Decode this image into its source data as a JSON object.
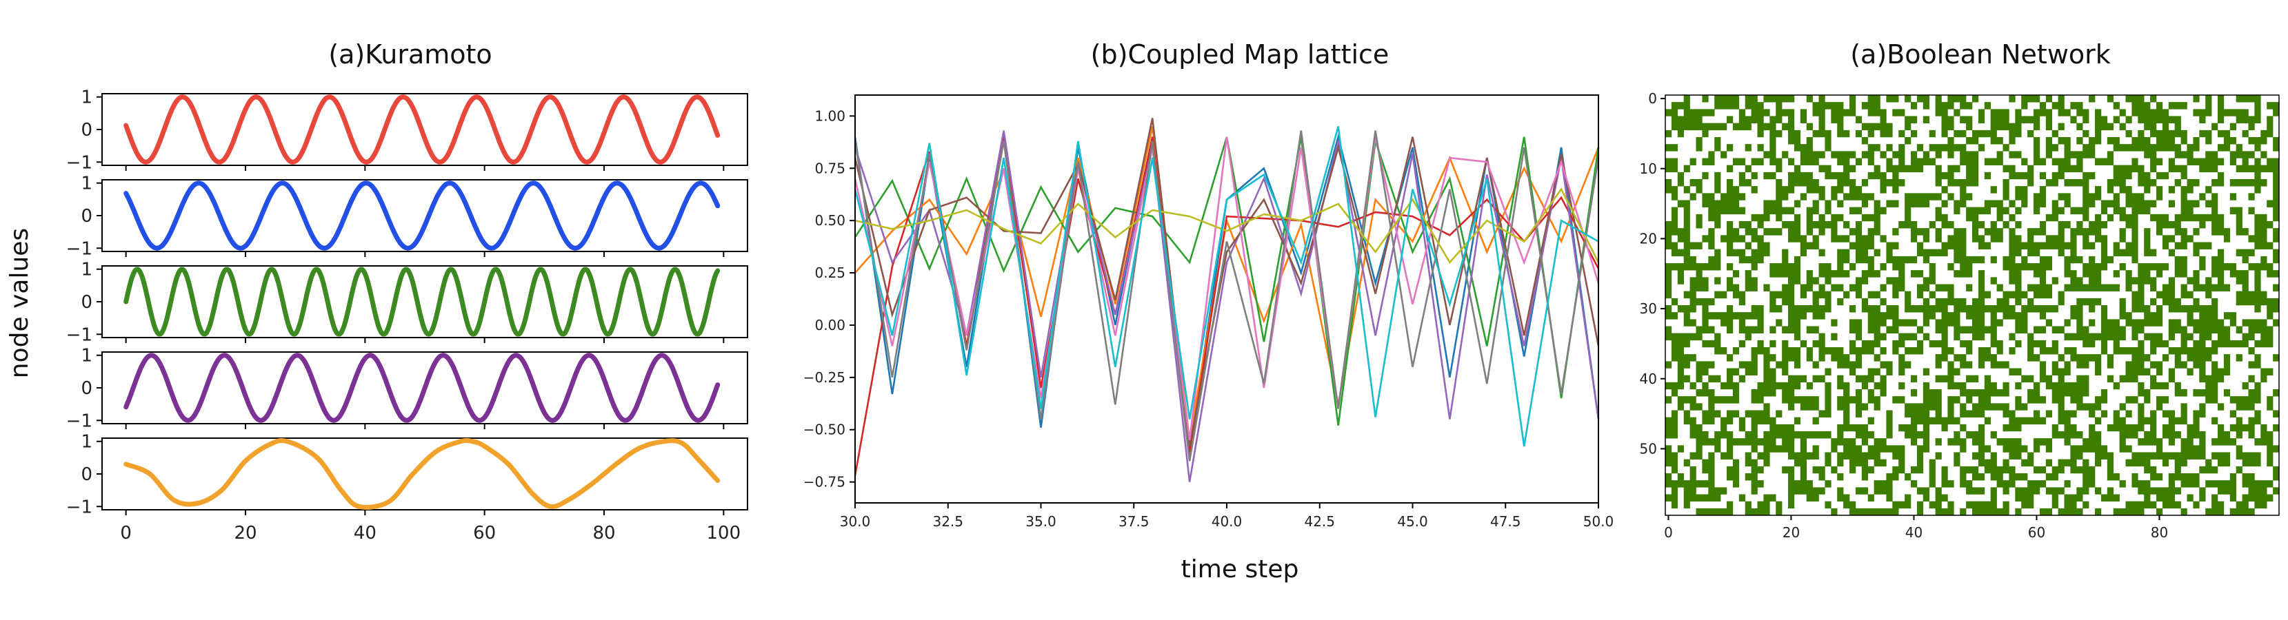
{
  "figure": {
    "shared_ylabel": "node values",
    "shared_xlabel": "time step"
  },
  "chart_data": [
    {
      "type": "line",
      "title": "(a)Kuramoto",
      "xlim": [
        -4,
        104
      ],
      "ylim": [
        -1.1,
        1.1
      ],
      "xticks": [
        0,
        20,
        40,
        60,
        80,
        100
      ],
      "yticks": [
        -1,
        0,
        1
      ],
      "series": [
        {
          "color": "#e8473b",
          "x_start": 0,
          "x_end": 99,
          "period": 12.3,
          "phase_offset": 0.52
        },
        {
          "color": "#2250e6",
          "x_start": 0,
          "x_end": 99,
          "period": 14.0,
          "phase_offset": 0.62
        },
        {
          "color": "#3d8a22",
          "x_start": 0,
          "x_end": 99,
          "period": 7.5,
          "phase_offset": 0.0
        },
        {
          "color": "#7b3294",
          "x_start": 0,
          "x_end": 99,
          "period": 12.2,
          "phase_offset": 0.1
        },
        {
          "color": "#f0a22b",
          "x_start": 0,
          "x_end": 99,
          "x": [
            0,
            4,
            8,
            12,
            16,
            20,
            24,
            27,
            32,
            36,
            39,
            44,
            48,
            52,
            56,
            58,
            60,
            64,
            68,
            71,
            74,
            78,
            82,
            86,
            90,
            93,
            96,
            99
          ],
          "y": [
            0.3,
            0.0,
            -0.8,
            -0.9,
            -0.5,
            0.4,
            0.9,
            1.0,
            0.5,
            -0.5,
            -1.0,
            -0.85,
            0.0,
            0.7,
            1.0,
            1.0,
            0.85,
            0.3,
            -0.6,
            -1.0,
            -0.8,
            -0.3,
            0.3,
            0.8,
            1.0,
            0.95,
            0.4,
            -0.2
          ]
        }
      ]
    },
    {
      "type": "line",
      "title": "(b)Coupled Map lattice",
      "xlim": [
        30,
        50
      ],
      "ylim": [
        -0.85,
        1.1
      ],
      "xticks": [
        30.0,
        32.5,
        35.0,
        37.5,
        40.0,
        42.5,
        45.0,
        47.5,
        50.0
      ],
      "xtick_labels": [
        "30.0",
        "32.5",
        "35.0",
        "37.5",
        "40.0",
        "42.5",
        "45.0",
        "47.5",
        "50.0"
      ],
      "yticks": [
        -0.75,
        -0.5,
        -0.25,
        0.0,
        0.25,
        0.5,
        0.75,
        1.0
      ],
      "ytick_labels": [
        "−0.75",
        "−0.50",
        "−0.25",
        "0.00",
        "0.25",
        "0.50",
        "0.75",
        "1.00"
      ],
      "x": [
        30,
        31,
        32,
        33,
        34,
        35,
        36,
        37,
        38,
        39,
        40,
        41,
        42,
        43,
        44,
        45,
        46,
        47,
        48,
        49,
        50
      ],
      "series": [
        {
          "color": "#1f77b4",
          "values": [
            0.9,
            -0.33,
            0.8,
            -0.2,
            0.9,
            -0.49,
            0.85,
            0.0,
            0.9,
            -0.6,
            0.6,
            0.75,
            0.25,
            0.9,
            0.2,
            0.85,
            -0.25,
            0.8,
            -0.15,
            0.85,
            -0.45
          ]
        },
        {
          "color": "#ff7f0e",
          "values": [
            0.25,
            0.45,
            0.6,
            0.34,
            0.74,
            0.04,
            0.8,
            0.1,
            0.95,
            -0.55,
            0.5,
            0.02,
            0.48,
            -0.38,
            0.6,
            0.4,
            0.8,
            0.35,
            0.75,
            0.4,
            0.85
          ]
        },
        {
          "color": "#2ca02c",
          "values": [
            0.42,
            0.69,
            0.27,
            0.7,
            0.26,
            0.66,
            0.35,
            0.56,
            0.52,
            0.3,
            0.9,
            -0.08,
            0.9,
            -0.48,
            0.88,
            0.35,
            0.7,
            -0.1,
            0.9,
            -0.35,
            0.85
          ]
        },
        {
          "color": "#d62728",
          "values": [
            -0.72,
            0.28,
            0.83,
            -0.1,
            0.9,
            -0.3,
            0.7,
            0.05,
            0.9,
            -0.62,
            0.52,
            0.51,
            0.5,
            0.47,
            0.54,
            0.52,
            0.43,
            0.6,
            0.4,
            0.61,
            0.27
          ]
        },
        {
          "color": "#9467bd",
          "values": [
            0.85,
            0.3,
            0.55,
            -0.05,
            0.93,
            -0.25,
            0.78,
            0.05,
            0.85,
            -0.75,
            0.3,
            0.7,
            0.15,
            0.88,
            -0.05,
            0.82,
            -0.45,
            0.72,
            -0.1,
            0.8,
            -0.45
          ]
        },
        {
          "color": "#8c564b",
          "values": [
            0.8,
            0.05,
            0.55,
            0.61,
            0.45,
            0.44,
            0.77,
            0.12,
            0.99,
            -0.58,
            0.35,
            0.6,
            0.2,
            0.85,
            0.15,
            0.9,
            0.0,
            0.8,
            -0.05,
            0.82,
            -0.1
          ]
        },
        {
          "color": "#e377c2",
          "values": [
            0.7,
            -0.1,
            0.78,
            -0.05,
            0.75,
            -0.35,
            0.75,
            -0.05,
            0.85,
            -0.55,
            0.9,
            -0.3,
            0.85,
            -0.4,
            0.9,
            0.1,
            0.8,
            0.78,
            0.3,
            0.78,
            0.2
          ]
        },
        {
          "color": "#7f7f7f",
          "values": [
            0.88,
            -0.25,
            0.82,
            -0.12,
            0.88,
            -0.45,
            0.78,
            -0.38,
            0.88,
            -0.65,
            0.4,
            -0.28,
            0.93,
            -0.4,
            0.93,
            -0.2,
            0.65,
            -0.28,
            0.85,
            -0.33,
            0.8
          ]
        },
        {
          "color": "#bcbd22",
          "values": [
            0.5,
            0.46,
            0.5,
            0.55,
            0.46,
            0.39,
            0.58,
            0.42,
            0.55,
            0.52,
            0.45,
            0.53,
            0.5,
            0.58,
            0.35,
            0.6,
            0.3,
            0.5,
            0.4,
            0.65,
            0.3
          ]
        },
        {
          "color": "#17becf",
          "values": [
            0.65,
            -0.05,
            0.87,
            -0.24,
            0.8,
            -0.4,
            0.88,
            -0.2,
            0.8,
            -0.45,
            0.6,
            0.72,
            0.3,
            0.95,
            -0.44,
            0.65,
            0.1,
            0.7,
            -0.58,
            0.5,
            0.4
          ]
        }
      ]
    },
    {
      "type": "heatmap",
      "title": "(a)Boolean Network",
      "cols": 100,
      "rows": 60,
      "on_color": "#3d7d00",
      "off_color": "#ffffff",
      "density": 0.5,
      "xticks": [
        0,
        20,
        40,
        60,
        80
      ],
      "yticks": [
        0,
        10,
        20,
        30,
        40,
        50
      ]
    }
  ]
}
